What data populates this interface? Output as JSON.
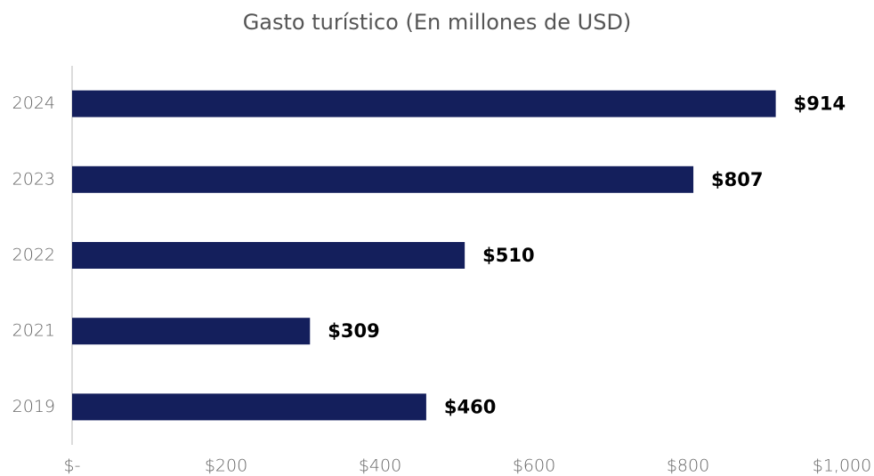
{
  "chart_data": {
    "type": "bar",
    "title": "Gasto turístico (En millones de USD)",
    "categories": [
      "2024",
      "2023",
      "2022",
      "2021",
      "2019"
    ],
    "values": [
      914,
      807,
      510,
      309,
      460
    ],
    "value_labels": [
      "$914",
      "$807",
      "$510",
      "$309",
      "$460"
    ],
    "color": "#141f5c",
    "xlim": [
      0,
      1000
    ],
    "xticks": [
      {
        "value": 0,
        "label": "$-"
      },
      {
        "value": 200,
        "label": "$200"
      },
      {
        "value": 400,
        "label": "$400"
      },
      {
        "value": 600,
        "label": "$600"
      },
      {
        "value": 800,
        "label": "$800"
      },
      {
        "value": 1000,
        "label": "$1,000"
      }
    ],
    "grid": false
  }
}
